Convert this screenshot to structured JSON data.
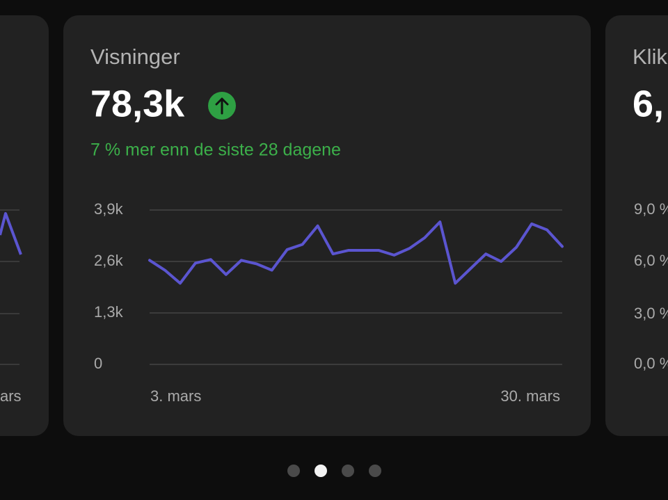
{
  "left_card": {
    "x_label": "ars"
  },
  "main_card": {
    "title": "Visninger",
    "value": "78,3k",
    "change_text": "7 % mer enn de siste 28 dagene",
    "chart_data": {
      "type": "line",
      "categories": [
        "3. mars",
        null,
        null,
        null,
        null,
        null,
        null,
        null,
        null,
        null,
        null,
        null,
        null,
        null,
        null,
        null,
        null,
        null,
        null,
        null,
        null,
        null,
        null,
        null,
        null,
        null,
        null,
        "30. mars"
      ],
      "series": [
        {
          "name": "Visninger",
          "color": "#5b55d0",
          "values": [
            2630,
            2380,
            2050,
            2560,
            2650,
            2270,
            2630,
            2540,
            2380,
            2900,
            3030,
            3500,
            2790,
            2880,
            2880,
            2880,
            2760,
            2930,
            3200,
            3600,
            2050,
            2420,
            2790,
            2600,
            2960,
            3550,
            3400,
            2980
          ]
        }
      ],
      "ylim": [
        0,
        3900
      ],
      "yticks": [
        {
          "value": 0,
          "label": "0"
        },
        {
          "value": 1300,
          "label": "1,3k"
        },
        {
          "value": 2600,
          "label": "2,6k"
        },
        {
          "value": 3900,
          "label": "3,9k"
        }
      ],
      "grid": true
    }
  },
  "right_card": {
    "title": "Klik",
    "value": "6,",
    "yticks": [
      "9,0 %",
      "6,0 %",
      "3,0 %",
      "0,0 %"
    ]
  }
}
